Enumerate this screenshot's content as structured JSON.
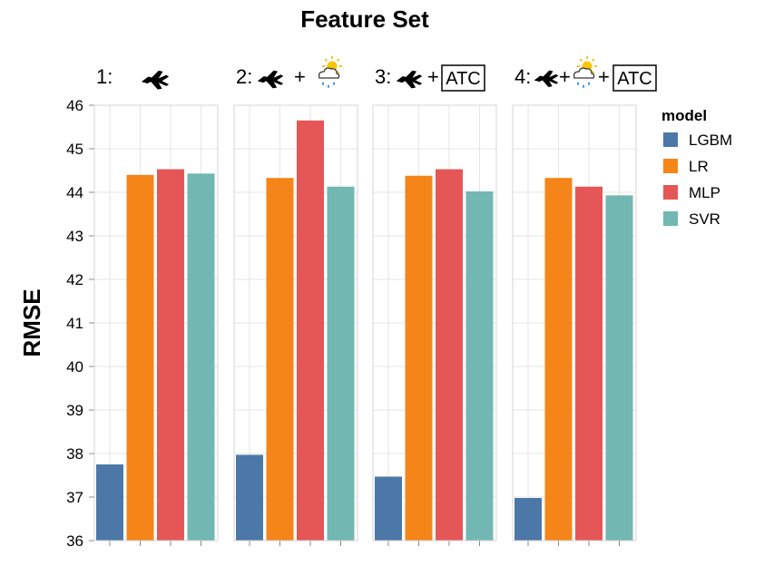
{
  "chart_data": {
    "type": "bar",
    "title": "Feature Set",
    "ylabel": "RMSE",
    "xlabel": "",
    "ylim": [
      36,
      46
    ],
    "yticks": [
      36,
      37,
      38,
      39,
      40,
      41,
      42,
      43,
      44,
      45,
      46
    ],
    "grid": true,
    "legend_title": "model",
    "legend_position": "right",
    "categories": [
      "LGBM",
      "LR",
      "MLP",
      "SVR"
    ],
    "colors": {
      "LGBM": "#4c78a8",
      "LR": "#f58518",
      "MLP": "#e45756",
      "SVR": "#72b7b2"
    },
    "facets": [
      {
        "label": "1:",
        "icons": [
          "airplane-icon"
        ],
        "values": [
          37.75,
          44.4,
          44.53,
          44.43
        ]
      },
      {
        "label": "2:",
        "icons": [
          "airplane-icon",
          "plus",
          "weather-icon"
        ],
        "values": [
          37.97,
          44.33,
          45.65,
          44.13
        ]
      },
      {
        "label": "3:",
        "icons": [
          "airplane-icon",
          "plus",
          "atc-box"
        ],
        "atc": "ATC",
        "values": [
          37.47,
          44.38,
          44.53,
          44.02
        ]
      },
      {
        "label": "4:",
        "icons": [
          "airplane-icon",
          "plus",
          "weather-icon",
          "plus",
          "atc-box"
        ],
        "atc": "ATC",
        "values": [
          36.98,
          44.33,
          44.13,
          43.93
        ]
      }
    ]
  }
}
